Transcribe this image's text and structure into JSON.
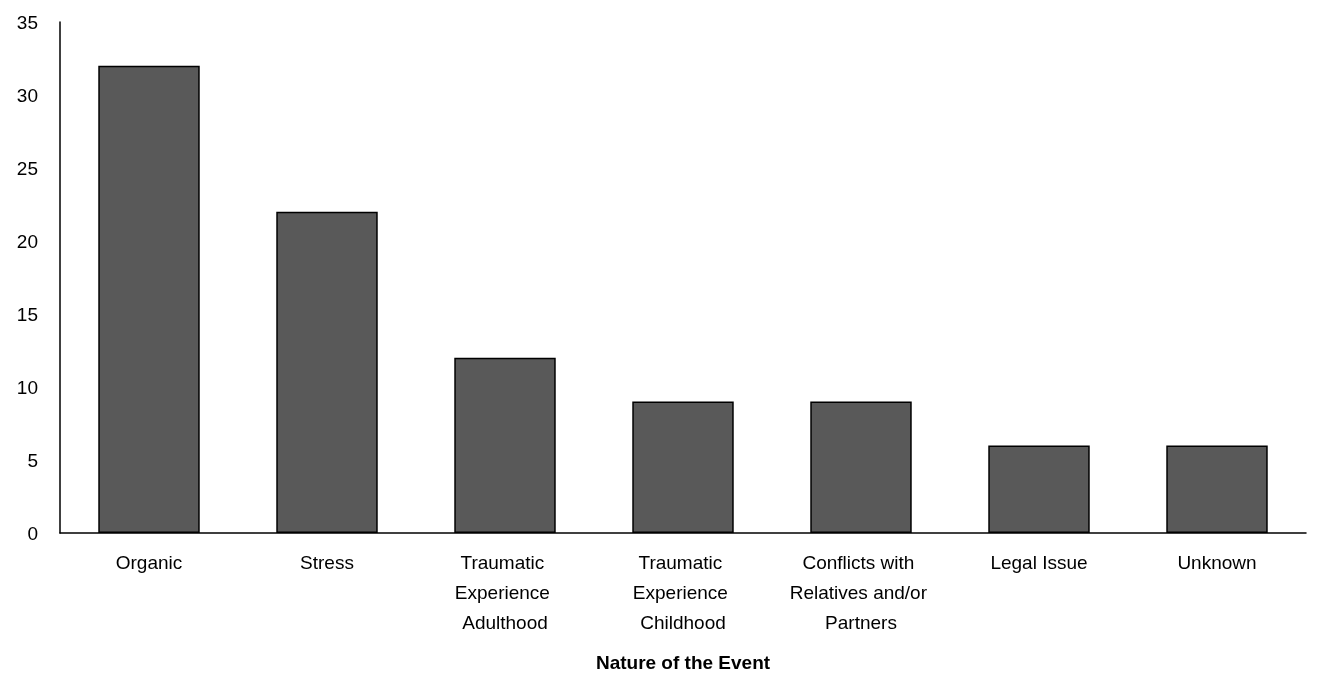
{
  "chart_data": {
    "type": "bar",
    "xlabel": "Nature of the Event",
    "categories": [
      "Organic",
      "Stress",
      "Traumatic Experience Adulthood",
      "Traumatic Experience Childhood",
      "Conflicts with Relatives and/or Partners",
      "Legal Issue",
      "Unknown"
    ],
    "values": [
      32,
      22,
      12,
      9,
      9,
      6,
      6
    ],
    "color": "#595959",
    "ylim": [
      0,
      35
    ],
    "yticks": [
      0,
      5,
      10,
      15,
      20,
      25,
      30,
      35
    ],
    "grid": false
  }
}
